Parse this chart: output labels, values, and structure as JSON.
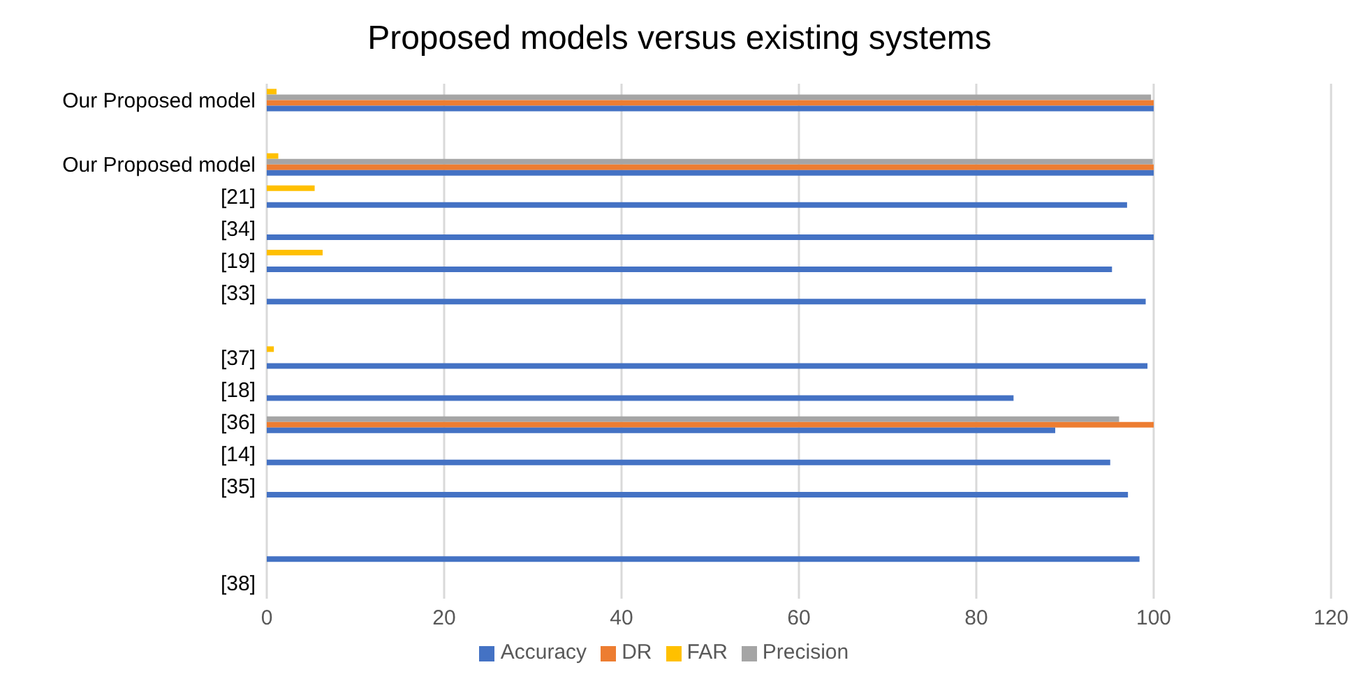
{
  "chart_data": {
    "type": "bar",
    "orientation": "horizontal",
    "title": "Proposed models versus existing systems",
    "categories": [
      "Our Proposed model",
      null,
      "Our Proposed model",
      "[21]",
      "[34]",
      "[19]",
      "[33]",
      null,
      "[37]",
      "[18]",
      "[36]",
      "[14]",
      "[35]",
      null,
      null,
      "[38]"
    ],
    "series": [
      {
        "name": "FAR",
        "color": "#ffc000",
        "values": [
          1.1,
          null,
          1.3,
          5.4,
          null,
          6.3,
          null,
          null,
          0.8,
          null,
          null,
          null,
          null,
          null,
          null,
          null
        ]
      },
      {
        "name": "Precision",
        "color": "#a5a5a5",
        "values": [
          99.7,
          null,
          99.9,
          null,
          null,
          null,
          null,
          null,
          null,
          null,
          96.1,
          null,
          null,
          null,
          null,
          null
        ]
      },
      {
        "name": "DR",
        "color": "#ed7d31",
        "values": [
          100,
          null,
          100,
          null,
          null,
          null,
          null,
          null,
          null,
          null,
          100,
          null,
          null,
          null,
          null,
          null
        ]
      },
      {
        "name": "Accuracy",
        "color": "#4472c4",
        "values": [
          100,
          null,
          100,
          97,
          100,
          95.3,
          99.1,
          null,
          99.3,
          84.2,
          88.9,
          95.1,
          97.1,
          null,
          98.4,
          null
        ]
      }
    ],
    "xlim": [
      0,
      120
    ],
    "xticks": [
      0,
      20,
      40,
      60,
      80,
      100,
      120
    ],
    "grid": "x",
    "legend": "bottom"
  }
}
